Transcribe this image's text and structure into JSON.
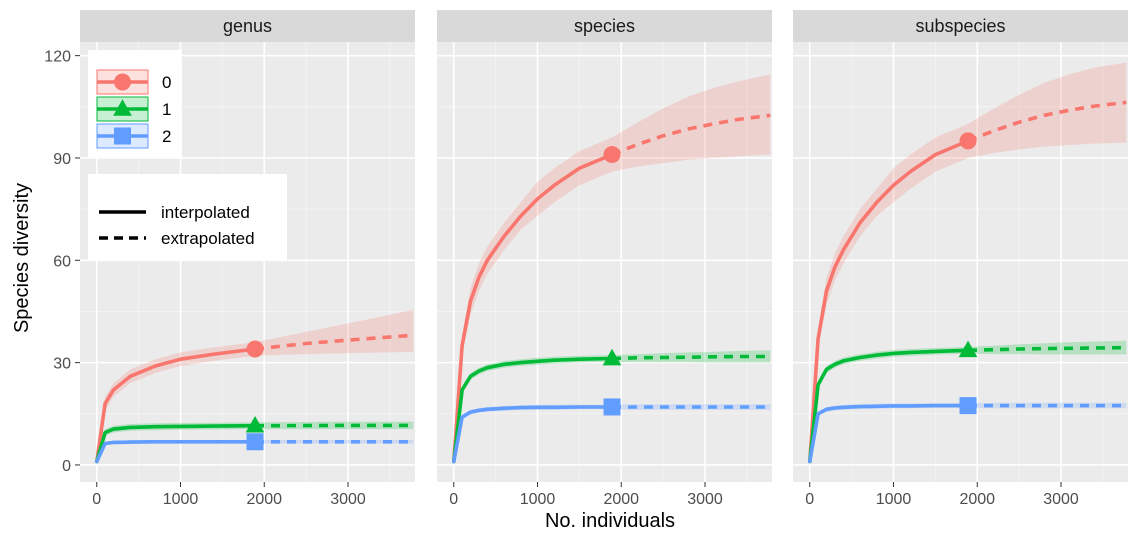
{
  "chart_data": {
    "type": "line",
    "xlabel": "No. individuals",
    "ylabel": "Species diversity",
    "xlim": [
      -200,
      3800
    ],
    "ylim": [
      -5,
      124
    ],
    "xticks": [
      0,
      1000,
      2000,
      3000
    ],
    "yticks": [
      0,
      30,
      60,
      90,
      120
    ],
    "grid": true,
    "legend_orders": {
      "position": "top-left",
      "entries": [
        {
          "label": "0",
          "color": "#F8766D",
          "marker": "circle"
        },
        {
          "label": "1",
          "color": "#00BA38",
          "marker": "triangle"
        },
        {
          "label": "2",
          "color": "#619CFF",
          "marker": "square"
        }
      ]
    },
    "legend_methods": {
      "position": "top-left",
      "entries": [
        {
          "label": "interpolated",
          "linestyle": "solid"
        },
        {
          "label": "extrapolated",
          "linestyle": "dashed"
        }
      ]
    },
    "observed_sample_size": 1890,
    "facets": [
      {
        "title": "genus",
        "series": [
          {
            "order": "0",
            "color": "#F8766D",
            "marker": "circle",
            "interpolated": {
              "x": [
                1,
                100,
                200,
                400,
                700,
                1000,
                1400,
                1890
              ],
              "y": [
                1,
                18,
                22,
                26,
                29,
                31,
                32.5,
                34
              ]
            },
            "extrapolated": {
              "x": [
                1890,
                2500,
                3000,
                3500,
                3780
              ],
              "y": [
                34,
                35.6,
                36.6,
                37.5,
                38
              ]
            },
            "ci_lower": [
              1,
              16,
              20,
              24,
              27,
              29,
              30.5,
              32,
              32.5,
              32.8,
              33,
              33.2
            ],
            "ci_upper": [
              1,
              20,
              24,
              28,
              31,
              33,
              34.5,
              36,
              39,
              41.5,
              44,
              45.5
            ]
          },
          {
            "order": "1",
            "color": "#00BA38",
            "marker": "triangle",
            "interpolated": {
              "x": [
                1,
                100,
                200,
                400,
                700,
                1000,
                1400,
                1890
              ],
              "y": [
                1,
                9.5,
                10.5,
                11,
                11.2,
                11.3,
                11.4,
                11.5
              ]
            },
            "extrapolated": {
              "x": [
                1890,
                2500,
                3000,
                3500,
                3780
              ],
              "y": [
                11.5,
                11.55,
                11.6,
                11.6,
                11.6
              ]
            },
            "ci_lower": [
              1,
              8.5,
              9.5,
              10,
              10.2,
              10.3,
              10.4,
              10.5,
              10.5,
              10.5,
              10.5,
              10.5
            ],
            "ci_upper": [
              1,
              10.5,
              11.5,
              12,
              12.2,
              12.3,
              12.4,
              12.5,
              12.6,
              12.7,
              12.7,
              12.7
            ]
          },
          {
            "order": "2",
            "color": "#619CFF",
            "marker": "square",
            "interpolated": {
              "x": [
                1,
                100,
                200,
                400,
                700,
                1000,
                1400,
                1890
              ],
              "y": [
                1,
                6.3,
                6.6,
                6.7,
                6.8,
                6.8,
                6.8,
                6.8
              ]
            },
            "extrapolated": {
              "x": [
                1890,
                2500,
                3000,
                3500,
                3780
              ],
              "y": [
                6.8,
                6.8,
                6.8,
                6.8,
                6.8
              ]
            },
            "ci_lower": [
              1,
              5.8,
              6.1,
              6.2,
              6.3,
              6.3,
              6.3,
              6.3,
              6.3,
              6.3,
              6.3,
              6.3
            ],
            "ci_upper": [
              1,
              6.8,
              7.1,
              7.2,
              7.3,
              7.3,
              7.3,
              7.3,
              7.3,
              7.3,
              7.3,
              7.3
            ]
          }
        ]
      },
      {
        "title": "species",
        "series": [
          {
            "order": "0",
            "color": "#F8766D",
            "marker": "circle",
            "interpolated": {
              "x": [
                1,
                100,
                200,
                300,
                400,
                600,
                800,
                1000,
                1200,
                1500,
                1890
              ],
              "y": [
                1,
                35,
                48,
                55,
                60,
                67,
                73,
                78,
                82,
                87,
                91
              ]
            },
            "extrapolated": {
              "x": [
                1890,
                2200,
                2500,
                2800,
                3100,
                3400,
                3780
              ],
              "y": [
                91,
                94,
                96.5,
                98.5,
                100,
                101.3,
                102.5
              ]
            },
            "ci_lower": [
              1,
              32,
              44,
              51,
              56,
              63,
              69,
              73,
              77,
              82,
              86,
              87.5,
              88.5,
              89.5,
              90,
              90.5,
              91
            ],
            "ci_upper": [
              1,
              38,
              52,
              59,
              64,
              71,
              77,
              83,
              87,
              92,
              96,
              100.5,
              104.5,
              108,
              110.5,
              112.5,
              114.5
            ]
          },
          {
            "order": "1",
            "color": "#00BA38",
            "marker": "triangle",
            "interpolated": {
              "x": [
                1,
                100,
                200,
                300,
                400,
                600,
                800,
                1000,
                1200,
                1500,
                1890
              ],
              "y": [
                1,
                22,
                26,
                27.5,
                28.5,
                29.5,
                30,
                30.4,
                30.7,
                31,
                31.2
              ]
            },
            "extrapolated": {
              "x": [
                1890,
                2200,
                2500,
                2800,
                3100,
                3400,
                3780
              ],
              "y": [
                31.2,
                31.4,
                31.5,
                31.6,
                31.7,
                31.8,
                31.8
              ]
            },
            "ci_lower": [
              1,
              21,
              25,
              26.5,
              27.5,
              28.5,
              29,
              29.4,
              29.7,
              30,
              30.2,
              30.1,
              30.1,
              30.1,
              30,
              30,
              30
            ],
            "ci_upper": [
              1,
              23,
              27,
              28.5,
              29.5,
              30.5,
              31,
              31.4,
              31.7,
              32,
              32.2,
              32.5,
              32.8,
              33,
              33.2,
              33.4,
              33.6
            ]
          },
          {
            "order": "2",
            "color": "#619CFF",
            "marker": "square",
            "interpolated": {
              "x": [
                1,
                100,
                200,
                300,
                400,
                600,
                800,
                1000,
                1200,
                1500,
                1890
              ],
              "y": [
                1,
                14,
                15.5,
                16,
                16.3,
                16.6,
                16.8,
                16.9,
                16.9,
                17,
                17
              ]
            },
            "extrapolated": {
              "x": [
                1890,
                2200,
                2500,
                2800,
                3100,
                3400,
                3780
              ],
              "y": [
                17,
                17,
                17,
                17,
                17,
                17,
                17
              ]
            },
            "ci_lower": [
              1,
              13.3,
              14.8,
              15.3,
              15.6,
              15.9,
              16.1,
              16.2,
              16.2,
              16.3,
              16.3,
              16.2,
              16.2,
              16.2,
              16.2,
              16.2,
              16.2
            ],
            "ci_upper": [
              1,
              14.7,
              16.2,
              16.7,
              17,
              17.3,
              17.5,
              17.6,
              17.6,
              17.7,
              17.7,
              17.8,
              17.8,
              17.8,
              17.8,
              17.8,
              17.8
            ]
          }
        ]
      },
      {
        "title": "subspecies",
        "series": [
          {
            "order": "0",
            "color": "#F8766D",
            "marker": "circle",
            "interpolated": {
              "x": [
                1,
                100,
                200,
                300,
                400,
                600,
                800,
                1000,
                1200,
                1500,
                1890
              ],
              "y": [
                1,
                37,
                51,
                58,
                63,
                71,
                77,
                82,
                86,
                91,
                95
              ]
            },
            "extrapolated": {
              "x": [
                1890,
                2200,
                2500,
                2800,
                3100,
                3400,
                3780
              ],
              "y": [
                95,
                98,
                100.5,
                102.5,
                104,
                105.2,
                106.3
              ]
            },
            "ci_lower": [
              1,
              34,
              47,
              54,
              59,
              67,
              73,
              77,
              81,
              86,
              90,
              91.5,
              92.5,
              93.3,
              93.8,
              94.2,
              94.5
            ],
            "ci_upper": [
              1,
              40,
              55,
              62,
              67,
              75,
              81,
              87,
              91,
              96,
              100,
              104.5,
              108.5,
              112,
              114.5,
              116.5,
              118
            ]
          },
          {
            "order": "1",
            "color": "#00BA38",
            "marker": "triangle",
            "interpolated": {
              "x": [
                1,
                100,
                200,
                300,
                400,
                600,
                800,
                1000,
                1200,
                1500,
                1890
              ],
              "y": [
                1,
                23.5,
                28,
                29.5,
                30.5,
                31.5,
                32.2,
                32.7,
                33,
                33.3,
                33.6
              ]
            },
            "extrapolated": {
              "x": [
                1890,
                2200,
                2500,
                2800,
                3100,
                3400,
                3780
              ],
              "y": [
                33.6,
                33.8,
                34,
                34.1,
                34.2,
                34.3,
                34.4
              ]
            },
            "ci_lower": [
              1,
              22.5,
              27,
              28.5,
              29.5,
              30.5,
              31.2,
              31.7,
              32,
              32.3,
              32.6,
              32.5,
              32.5,
              32.4,
              32.4,
              32.4,
              32.4
            ],
            "ci_upper": [
              1,
              24.5,
              29,
              30.5,
              31.5,
              32.5,
              33.2,
              33.7,
              34,
              34.3,
              34.6,
              35,
              35.4,
              35.7,
              36,
              36.2,
              36.4
            ]
          },
          {
            "order": "2",
            "color": "#619CFF",
            "marker": "square",
            "interpolated": {
              "x": [
                1,
                100,
                200,
                300,
                400,
                600,
                800,
                1000,
                1200,
                1500,
                1890
              ],
              "y": [
                1,
                15,
                16.3,
                16.7,
                16.9,
                17.1,
                17.2,
                17.3,
                17.3,
                17.4,
                17.4
              ]
            },
            "extrapolated": {
              "x": [
                1890,
                2200,
                2500,
                2800,
                3100,
                3400,
                3780
              ],
              "y": [
                17.4,
                17.4,
                17.4,
                17.4,
                17.4,
                17.4,
                17.4
              ]
            },
            "ci_lower": [
              1,
              14.3,
              15.6,
              16,
              16.2,
              16.4,
              16.5,
              16.6,
              16.6,
              16.7,
              16.7,
              16.6,
              16.6,
              16.6,
              16.6,
              16.6,
              16.6
            ],
            "ci_upper": [
              1,
              15.7,
              17,
              17.4,
              17.6,
              17.8,
              17.9,
              18,
              18,
              18.1,
              18.1,
              18.2,
              18.2,
              18.2,
              18.2,
              18.2,
              18.2
            ]
          }
        ]
      }
    ]
  }
}
